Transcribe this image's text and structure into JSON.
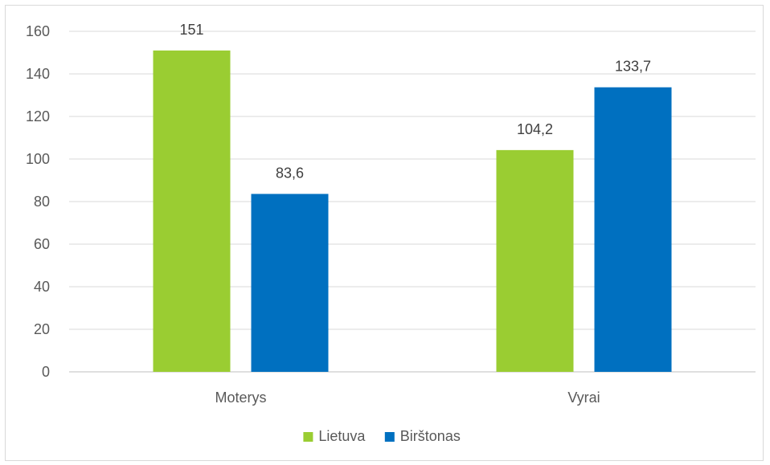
{
  "chart_data": {
    "type": "bar",
    "categories": [
      "Moterys",
      "Vyrai"
    ],
    "series": [
      {
        "name": "Lietuva",
        "color": "#9acd32",
        "values": [
          151,
          104.2
        ],
        "labels": [
          "151",
          "104,2"
        ]
      },
      {
        "name": "Birštonas",
        "color": "#0070c0",
        "values": [
          83.6,
          133.7
        ],
        "labels": [
          "83,6",
          "133,7"
        ]
      }
    ],
    "ylim": [
      0,
      160
    ],
    "yticks": [
      0,
      20,
      40,
      60,
      80,
      100,
      120,
      140,
      160
    ],
    "grid": true,
    "legend_position": "bottom"
  }
}
